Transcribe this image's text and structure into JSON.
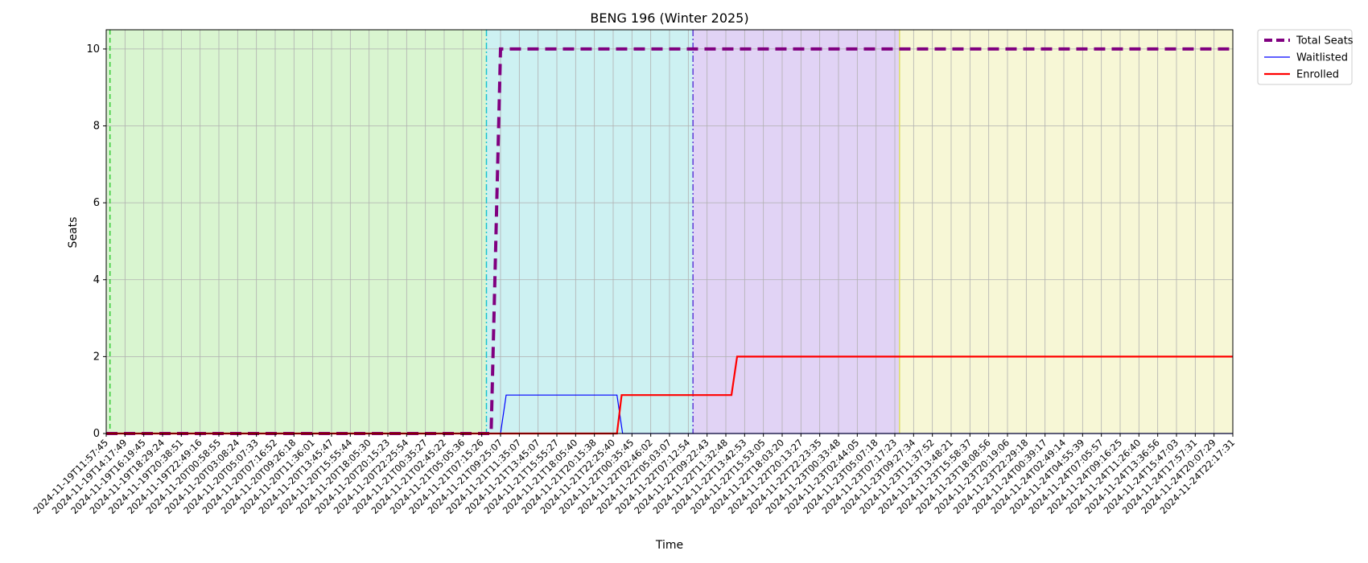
{
  "chart_data": {
    "type": "line",
    "title": "BENG 196 (Winter 2025)",
    "xlabel": "Time",
    "ylabel": "Seats",
    "ylim": [
      0,
      10.5
    ],
    "yticks": [
      0,
      2,
      4,
      6,
      8,
      10
    ],
    "grid": true,
    "legend_position": "outside top-right",
    "x_tick_labels": [
      "2024-11-19T11:57:45",
      "2024-11-19T14:17:49",
      "2024-11-19T16:19:45",
      "2024-11-19T18:29:24",
      "2024-11-19T20:38:51",
      "2024-11-19T22:49:16",
      "2024-11-20T00:58:55",
      "2024-11-20T03:08:24",
      "2024-11-20T05:07:33",
      "2024-11-20T07:16:52",
      "2024-11-20T09:26:18",
      "2024-11-20T11:36:01",
      "2024-11-20T13:45:47",
      "2024-11-20T15:55:44",
      "2024-11-20T18:05:30",
      "2024-11-20T20:15:23",
      "2024-11-20T22:25:54",
      "2024-11-21T00:35:27",
      "2024-11-21T02:45:22",
      "2024-11-21T05:05:36",
      "2024-11-21T07:15:26",
      "2024-11-21T09:25:07",
      "2024-11-21T11:35:07",
      "2024-11-21T13:45:07",
      "2024-11-21T15:55:27",
      "2024-11-21T18:05:40",
      "2024-11-21T20:15:38",
      "2024-11-21T22:25:40",
      "2024-11-22T00:35:45",
      "2024-11-22T02:46:02",
      "2024-11-22T05:03:07",
      "2024-11-22T07:12:54",
      "2024-11-22T09:22:43",
      "2024-11-22T11:32:48",
      "2024-11-22T13:42:53",
      "2024-11-22T15:53:05",
      "2024-11-22T18:03:20",
      "2024-11-22T20:13:27",
      "2024-11-22T22:23:35",
      "2024-11-23T00:33:48",
      "2024-11-23T02:44:05",
      "2024-11-23T05:07:18",
      "2024-11-23T07:17:23",
      "2024-11-23T09:27:34",
      "2024-11-23T11:37:52",
      "2024-11-23T13:48:21",
      "2024-11-23T15:58:37",
      "2024-11-23T18:08:56",
      "2024-11-23T20:19:06",
      "2024-11-23T22:29:18",
      "2024-11-24T00:39:17",
      "2024-11-24T02:49:14",
      "2024-11-24T04:55:39",
      "2024-11-24T07:05:57",
      "2024-11-24T09:16:25",
      "2024-11-24T11:26:40",
      "2024-11-24T13:36:56",
      "2024-11-24T15:47:03",
      "2024-11-24T17:57:31",
      "2024-11-24T20:07:29",
      "2024-11-24T22:17:31"
    ],
    "x_range_index": [
      0,
      60
    ],
    "series": [
      {
        "name": "Total Seats",
        "color": "#800080",
        "style": "dashed",
        "points": [
          [
            0,
            0
          ],
          [
            20.5,
            0
          ],
          [
            21.0,
            10
          ],
          [
            60,
            10
          ]
        ]
      },
      {
        "name": "Waitlisted",
        "color": "#0000ff",
        "style": "solid",
        "points": [
          [
            0,
            0
          ],
          [
            21.0,
            0
          ],
          [
            21.3,
            1
          ],
          [
            27.2,
            1
          ],
          [
            27.5,
            0
          ],
          [
            60,
            0
          ]
        ]
      },
      {
        "name": "Enrolled",
        "color": "#ff0000",
        "style": "solid",
        "points": [
          [
            0,
            0
          ],
          [
            27.2,
            0
          ],
          [
            27.45,
            1
          ],
          [
            33.3,
            1
          ],
          [
            33.6,
            2
          ],
          [
            60,
            2
          ]
        ]
      }
    ],
    "phases": [
      {
        "from": 0,
        "to": 20.25,
        "color": "#d9f5d0",
        "line_color": "#33cc33",
        "line_style": "dashed",
        "line_at": 0.2
      },
      {
        "from": 20.25,
        "to": 31.25,
        "color": "#cdf1f2",
        "line_color": "#18c3d0",
        "line_style": "dashdot",
        "line_at": 20.25
      },
      {
        "from": 31.25,
        "to": 42.25,
        "color": "#e1d3f5",
        "line_color": "#5e3ad6",
        "line_style": "dashdot",
        "line_at": 31.25
      },
      {
        "from": 42.25,
        "to": 60,
        "color": "#f7f7d6",
        "line_color": "#dddd66",
        "line_style": "solid",
        "line_at": 42.25
      }
    ]
  }
}
